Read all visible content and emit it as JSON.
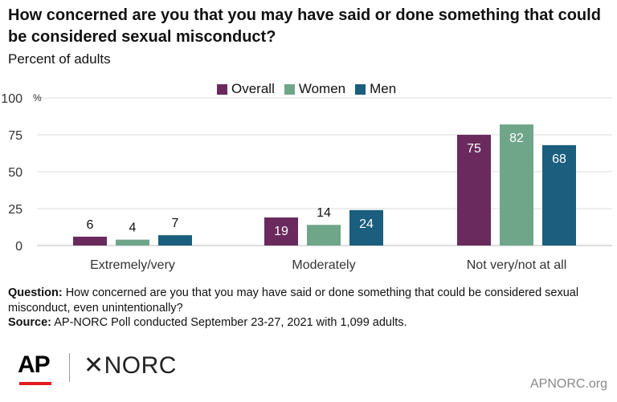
{
  "chart_data": {
    "type": "bar",
    "title": "How concerned are you that you may have said or done something that could be considered sexual misconduct?",
    "subtitle": "Percent of adults",
    "y_unit_label": "%",
    "ylim": [
      0,
      100
    ],
    "yticks": [
      0,
      25,
      50,
      75,
      100
    ],
    "grid": true,
    "legend_position": "top-center",
    "categories": [
      "Extremely/very",
      "Moderately",
      "Not very/not at all"
    ],
    "series": [
      {
        "name": "Overall",
        "color": "#6b2a5e",
        "values": [
          6,
          19,
          75
        ]
      },
      {
        "name": "Women",
        "color": "#6fa68a",
        "values": [
          4,
          14,
          82
        ]
      },
      {
        "name": "Men",
        "color": "#1b5e7e",
        "values": [
          7,
          24,
          68
        ]
      }
    ]
  },
  "notes": {
    "question_label": "Question:",
    "question_text": " How concerned are you that you may have said or done something that could be considered sexual misconduct, even unintentionally?",
    "source_label": "Source:",
    "source_text": " AP-NORC Poll conducted September 23-27, 2021 with 1,099 adults."
  },
  "branding": {
    "ap_logo": "AP",
    "norc_logo": "✕NORC",
    "website": "APNORC.org"
  }
}
